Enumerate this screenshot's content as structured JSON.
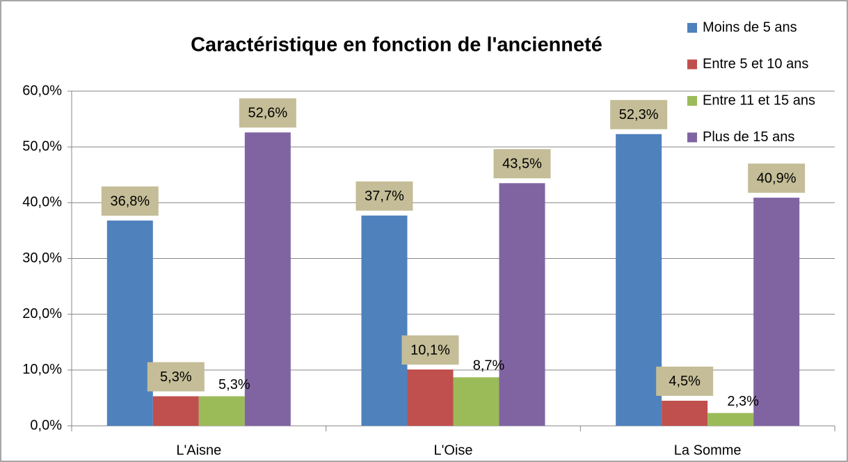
{
  "chart_data": {
    "type": "bar",
    "title": "Caractéristique  en fonction de l'ancienneté",
    "categories": [
      "L'Aisne",
      "L'Oise",
      "La Somme"
    ],
    "series": [
      {
        "name": "Moins de 5 ans",
        "color": "#4f81bd",
        "values": [
          36.8,
          37.7,
          52.3
        ],
        "value_labels": [
          "36,8%",
          "37,7%",
          "52,3%"
        ]
      },
      {
        "name": "Entre 5 et 10 ans",
        "color": "#c0504d",
        "values": [
          5.3,
          10.1,
          4.5
        ],
        "value_labels": [
          "5,3%",
          "10,1%",
          "4,5%"
        ]
      },
      {
        "name": "Entre 11 et 15 ans",
        "color": "#9bbb59",
        "values": [
          5.3,
          8.7,
          2.3
        ],
        "value_labels": [
          "5,3%",
          "8,7%",
          "2,3%"
        ]
      },
      {
        "name": "Plus de 15 ans",
        "color": "#8064a2",
        "values": [
          52.6,
          43.5,
          40.9
        ],
        "value_labels": [
          "52,6%",
          "43,5%",
          "40,9%"
        ]
      }
    ],
    "ylim": [
      0,
      60
    ],
    "yticks": [
      {
        "value": 0,
        "label": "0,0%"
      },
      {
        "value": 10,
        "label": "10,0%"
      },
      {
        "value": 20,
        "label": "20,0%"
      },
      {
        "value": 30,
        "label": "30,0%"
      },
      {
        "value": 40,
        "label": "40,0%"
      },
      {
        "value": 50,
        "label": "50,0%"
      },
      {
        "value": 60,
        "label": "60,0%"
      }
    ],
    "grid": true,
    "legend": "top-right"
  }
}
